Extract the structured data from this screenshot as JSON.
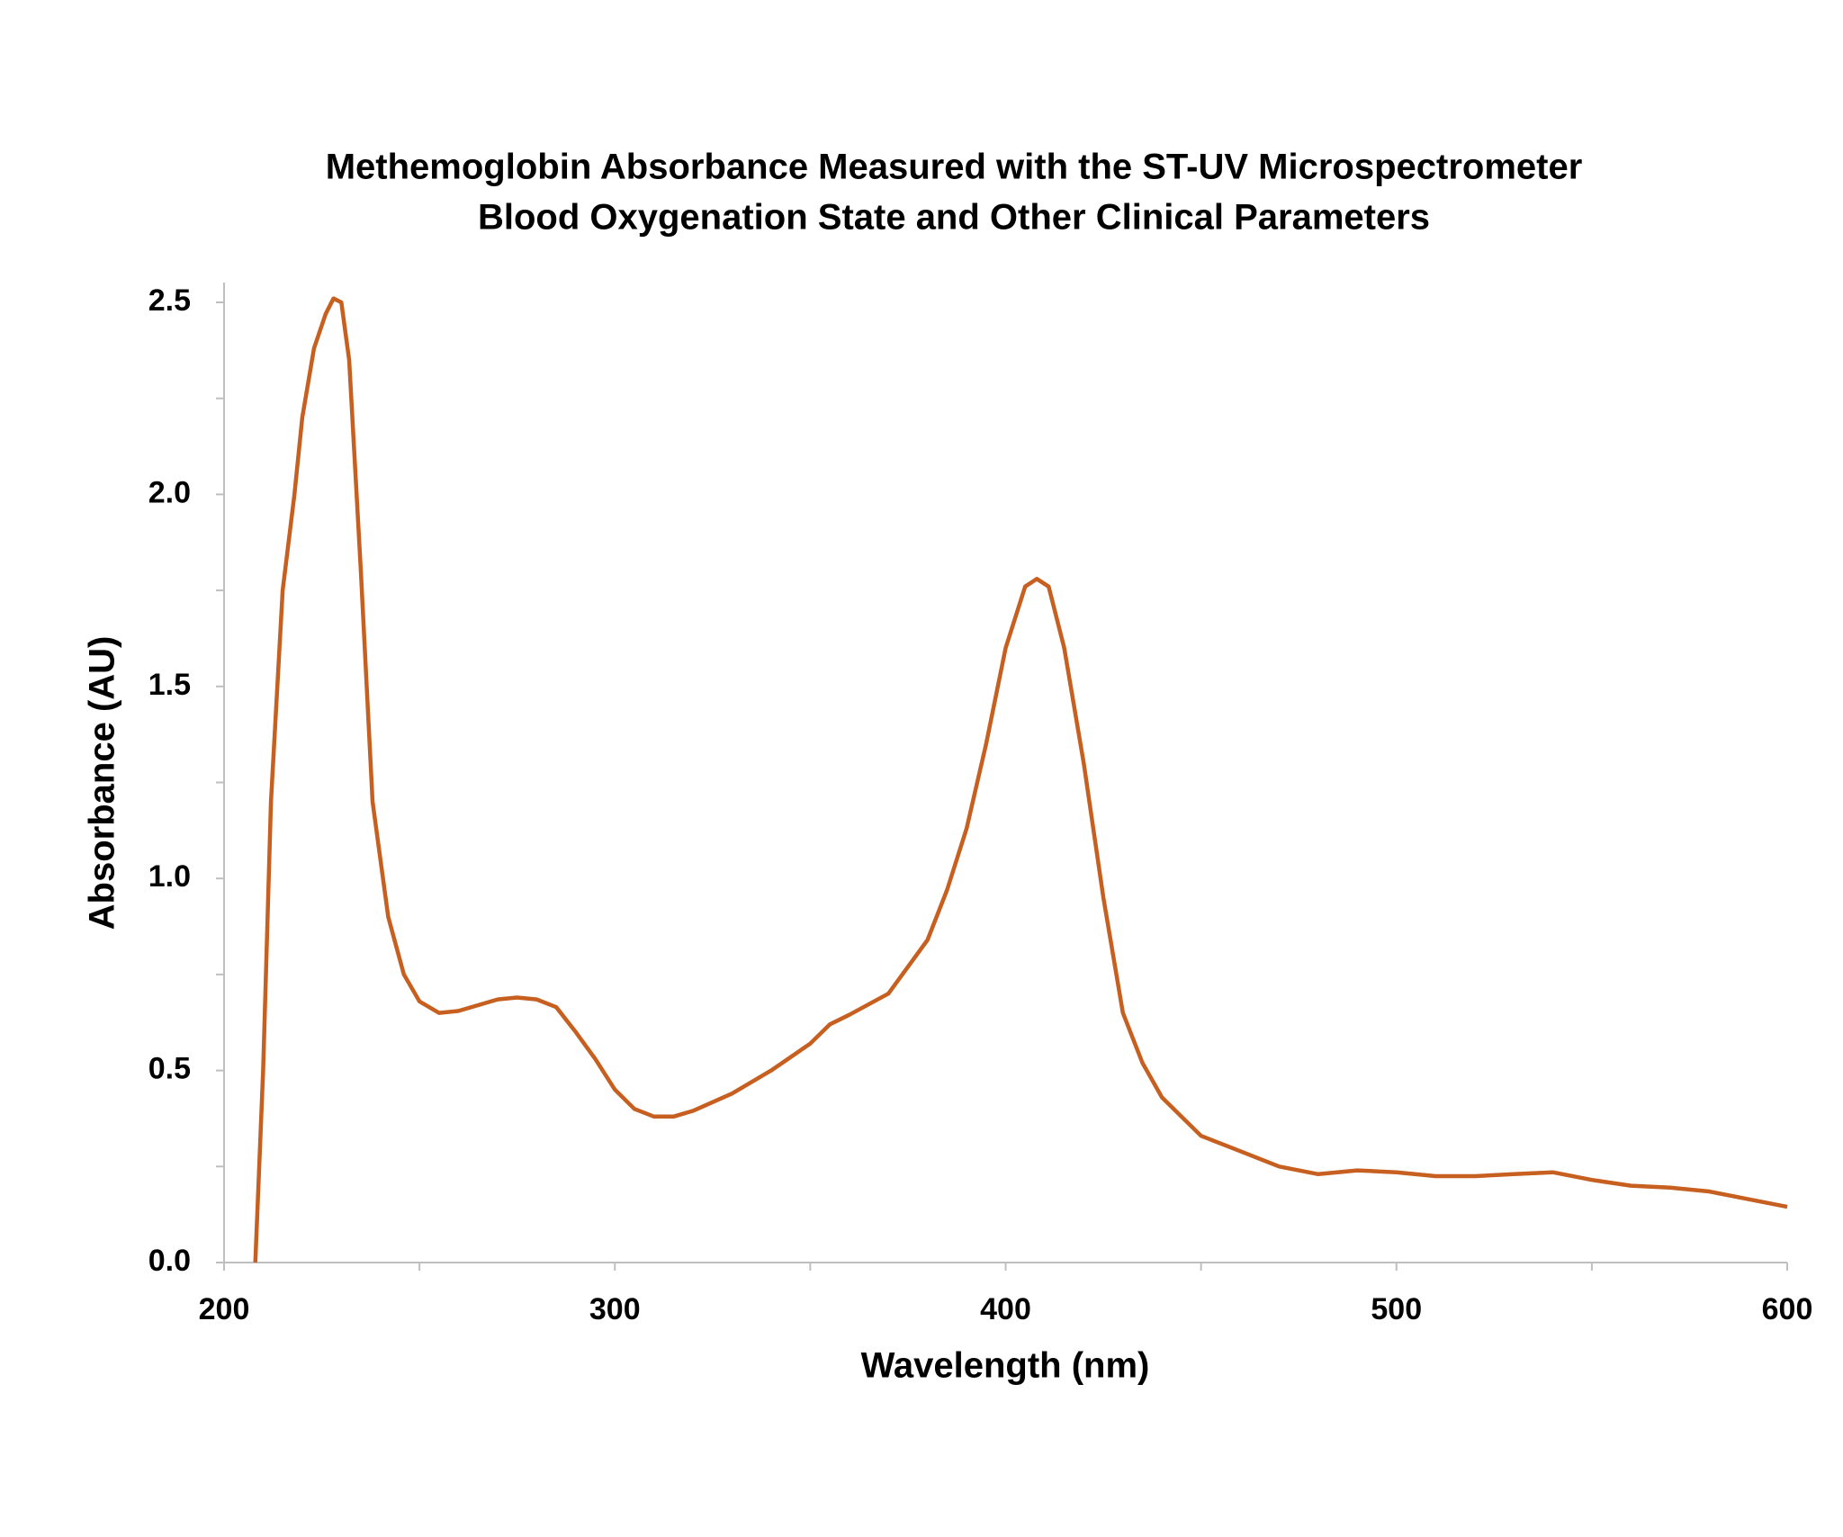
{
  "chart_data": {
    "type": "line",
    "title": "Methemoglobin Absorbance Measured with the ST-UV Microspectrometer",
    "subtitle": "Blood Oxygenation State and Other Clinical Parameters",
    "x_label": "Wavelength (nm)",
    "y_label": "Absorbance (AU)",
    "xlim": [
      200,
      600
    ],
    "xticks": [
      200,
      300,
      400,
      500,
      600
    ],
    "ylim": [
      0,
      2.5
    ],
    "yticks": [
      {
        "value": 0,
        "label": "0.0"
      },
      0.5,
      {
        "value": 1,
        "label": "1.0"
      },
      1.5,
      {
        "value": 2,
        "label": "2.0"
      },
      2.5
    ],
    "grid": false,
    "x": [
      208,
      210,
      212,
      215,
      218,
      220,
      223,
      226,
      228,
      230,
      232,
      235,
      238,
      242,
      246,
      250,
      255,
      260,
      265,
      270,
      275,
      280,
      285,
      290,
      295,
      300,
      305,
      310,
      315,
      320,
      330,
      340,
      350,
      355,
      360,
      370,
      375,
      380,
      385,
      390,
      395,
      400,
      405,
      408,
      411,
      415,
      420,
      425,
      430,
      435,
      440,
      450,
      460,
      470,
      480,
      490,
      500,
      510,
      520,
      530,
      540,
      550,
      560,
      570,
      580,
      590,
      600
    ],
    "series": [
      {
        "color": "#c65f1f",
        "values": [
          0,
          0.5,
          1.2,
          1.75,
          2.0,
          2.2,
          2.38,
          2.47,
          2.51,
          2.5,
          2.35,
          1.8,
          1.2,
          0.9,
          0.75,
          0.68,
          0.65,
          0.655,
          0.67,
          0.685,
          0.69,
          0.685,
          0.665,
          0.6,
          0.53,
          0.45,
          0.4,
          0.38,
          0.38,
          0.395,
          0.44,
          0.5,
          0.57,
          0.62,
          0.645,
          0.7,
          0.77,
          0.84,
          0.97,
          1.13,
          1.35,
          1.6,
          1.76,
          1.78,
          1.76,
          1.6,
          1.3,
          0.95,
          0.65,
          0.52,
          0.43,
          0.33,
          0.29,
          0.25,
          0.23,
          0.24,
          0.235,
          0.225,
          0.225,
          0.23,
          0.235,
          0.215,
          0.2,
          0.195,
          0.185,
          0.165,
          0.145
        ]
      }
    ]
  }
}
